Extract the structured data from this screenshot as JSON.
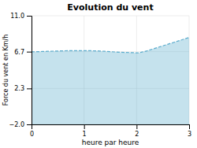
{
  "chart_data": {
    "type": "area",
    "title": "Evolution du vent",
    "x_label": "heure par heure",
    "y_label": "Force du vent en Km/h",
    "x": [
      0.0,
      0.1,
      0.2,
      0.3,
      0.4,
      0.5,
      0.6,
      0.7,
      0.8,
      0.9,
      1.0,
      1.1,
      1.2,
      1.3,
      1.4,
      1.5,
      1.6,
      1.7,
      1.8,
      1.9,
      2.0,
      2.05,
      2.1,
      2.2,
      2.3,
      2.4,
      2.5,
      2.6,
      2.7,
      2.8,
      2.9,
      3.0
    ],
    "values": [
      6.68,
      6.7,
      6.72,
      6.74,
      6.76,
      6.78,
      6.8,
      6.82,
      6.83,
      6.82,
      6.83,
      6.82,
      6.8,
      6.78,
      6.74,
      6.7,
      6.66,
      6.63,
      6.61,
      6.59,
      6.56,
      6.57,
      6.65,
      6.8,
      7.0,
      7.2,
      7.4,
      7.6,
      7.8,
      8.0,
      8.2,
      8.4
    ],
    "color": "#5aabcc",
    "line_style": "dashed",
    "xlim": [
      0,
      3
    ],
    "ylim": [
      -2.0,
      11.0
    ],
    "xticks": [
      0,
      1,
      2,
      3
    ],
    "yticks": [
      {
        "value": -2.0,
        "label": "−2.0"
      },
      2.3,
      6.7,
      {
        "value": 11.0,
        "label": "11.0"
      }
    ],
    "grid": true
  }
}
